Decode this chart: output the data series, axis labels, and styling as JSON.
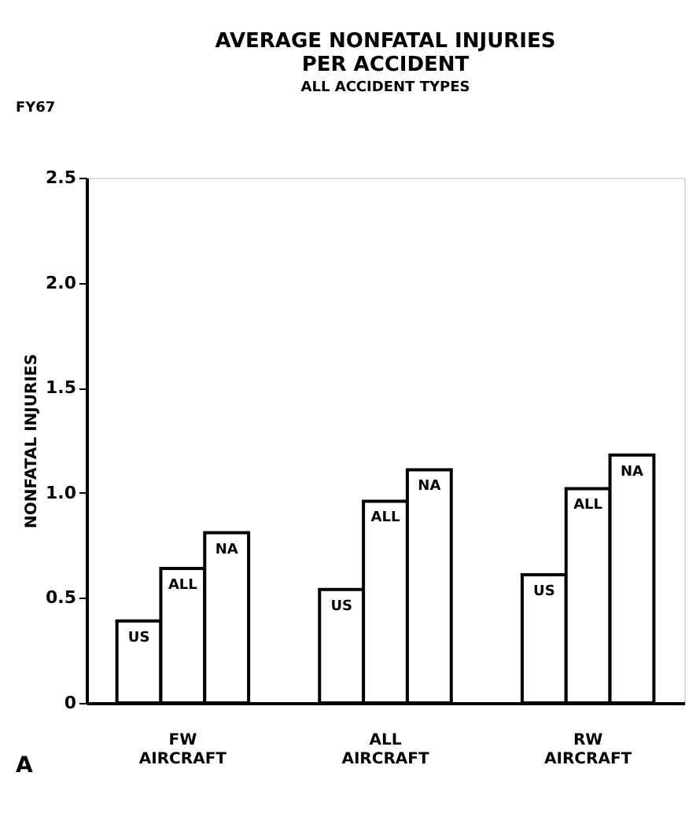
{
  "chart_data": {
    "type": "bar",
    "title": [
      "AVERAGE NONFATAL INJURIES",
      "PER ACCIDENT"
    ],
    "subtitle": "ALL ACCIDENT TYPES",
    "ylabel": "NONFATAL INJURIES",
    "annotations": [
      "FY67",
      "A"
    ],
    "categories": [
      [
        "FW",
        "AIRCRAFT"
      ],
      [
        "ALL",
        "AIRCRAFT"
      ],
      [
        "RW",
        "AIRCRAFT"
      ]
    ],
    "series": [
      {
        "name": "US",
        "color": "#ffffff",
        "values": [
          0.39,
          0.54,
          0.61
        ]
      },
      {
        "name": "ALL",
        "color": "#ffffff",
        "values": [
          0.64,
          0.96,
          1.02
        ]
      },
      {
        "name": "NA",
        "color": "#ffffff",
        "values": [
          0.81,
          1.11,
          1.18
        ]
      }
    ],
    "ylim": [
      0,
      2.5
    ],
    "yticks": [
      {
        "value": 0,
        "label": "0"
      },
      0.5,
      {
        "value": 1,
        "label": "1.0"
      },
      1.5,
      {
        "value": 2,
        "label": "2.0"
      },
      2.5
    ],
    "grid": false,
    "legend": false
  }
}
